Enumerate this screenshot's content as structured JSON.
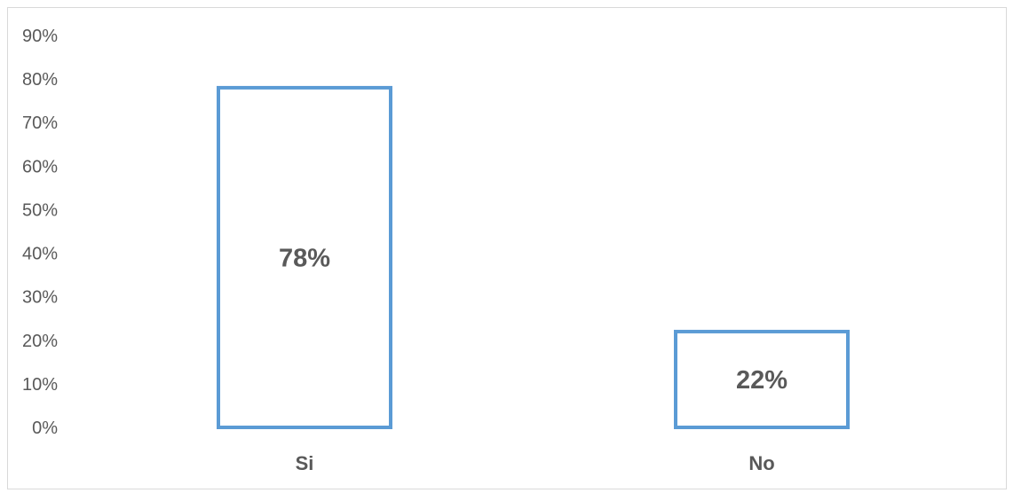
{
  "chart_data": {
    "type": "bar",
    "title": "",
    "xlabel": "",
    "ylabel": "",
    "categories": [
      "Si",
      "No"
    ],
    "values": [
      78,
      22
    ],
    "data_labels": [
      "78%",
      "22%"
    ],
    "ylim": [
      0,
      90
    ],
    "yticks": [
      0,
      10,
      20,
      30,
      40,
      50,
      60,
      70,
      80,
      90
    ],
    "ytick_labels": [
      "0%",
      "10%",
      "20%",
      "30%",
      "40%",
      "50%",
      "60%",
      "70%",
      "80%",
      "90%"
    ],
    "grid": false,
    "legend": "none",
    "bar_style": "outline",
    "bar_color": "#5b9bd5",
    "text_color": "#595959"
  }
}
